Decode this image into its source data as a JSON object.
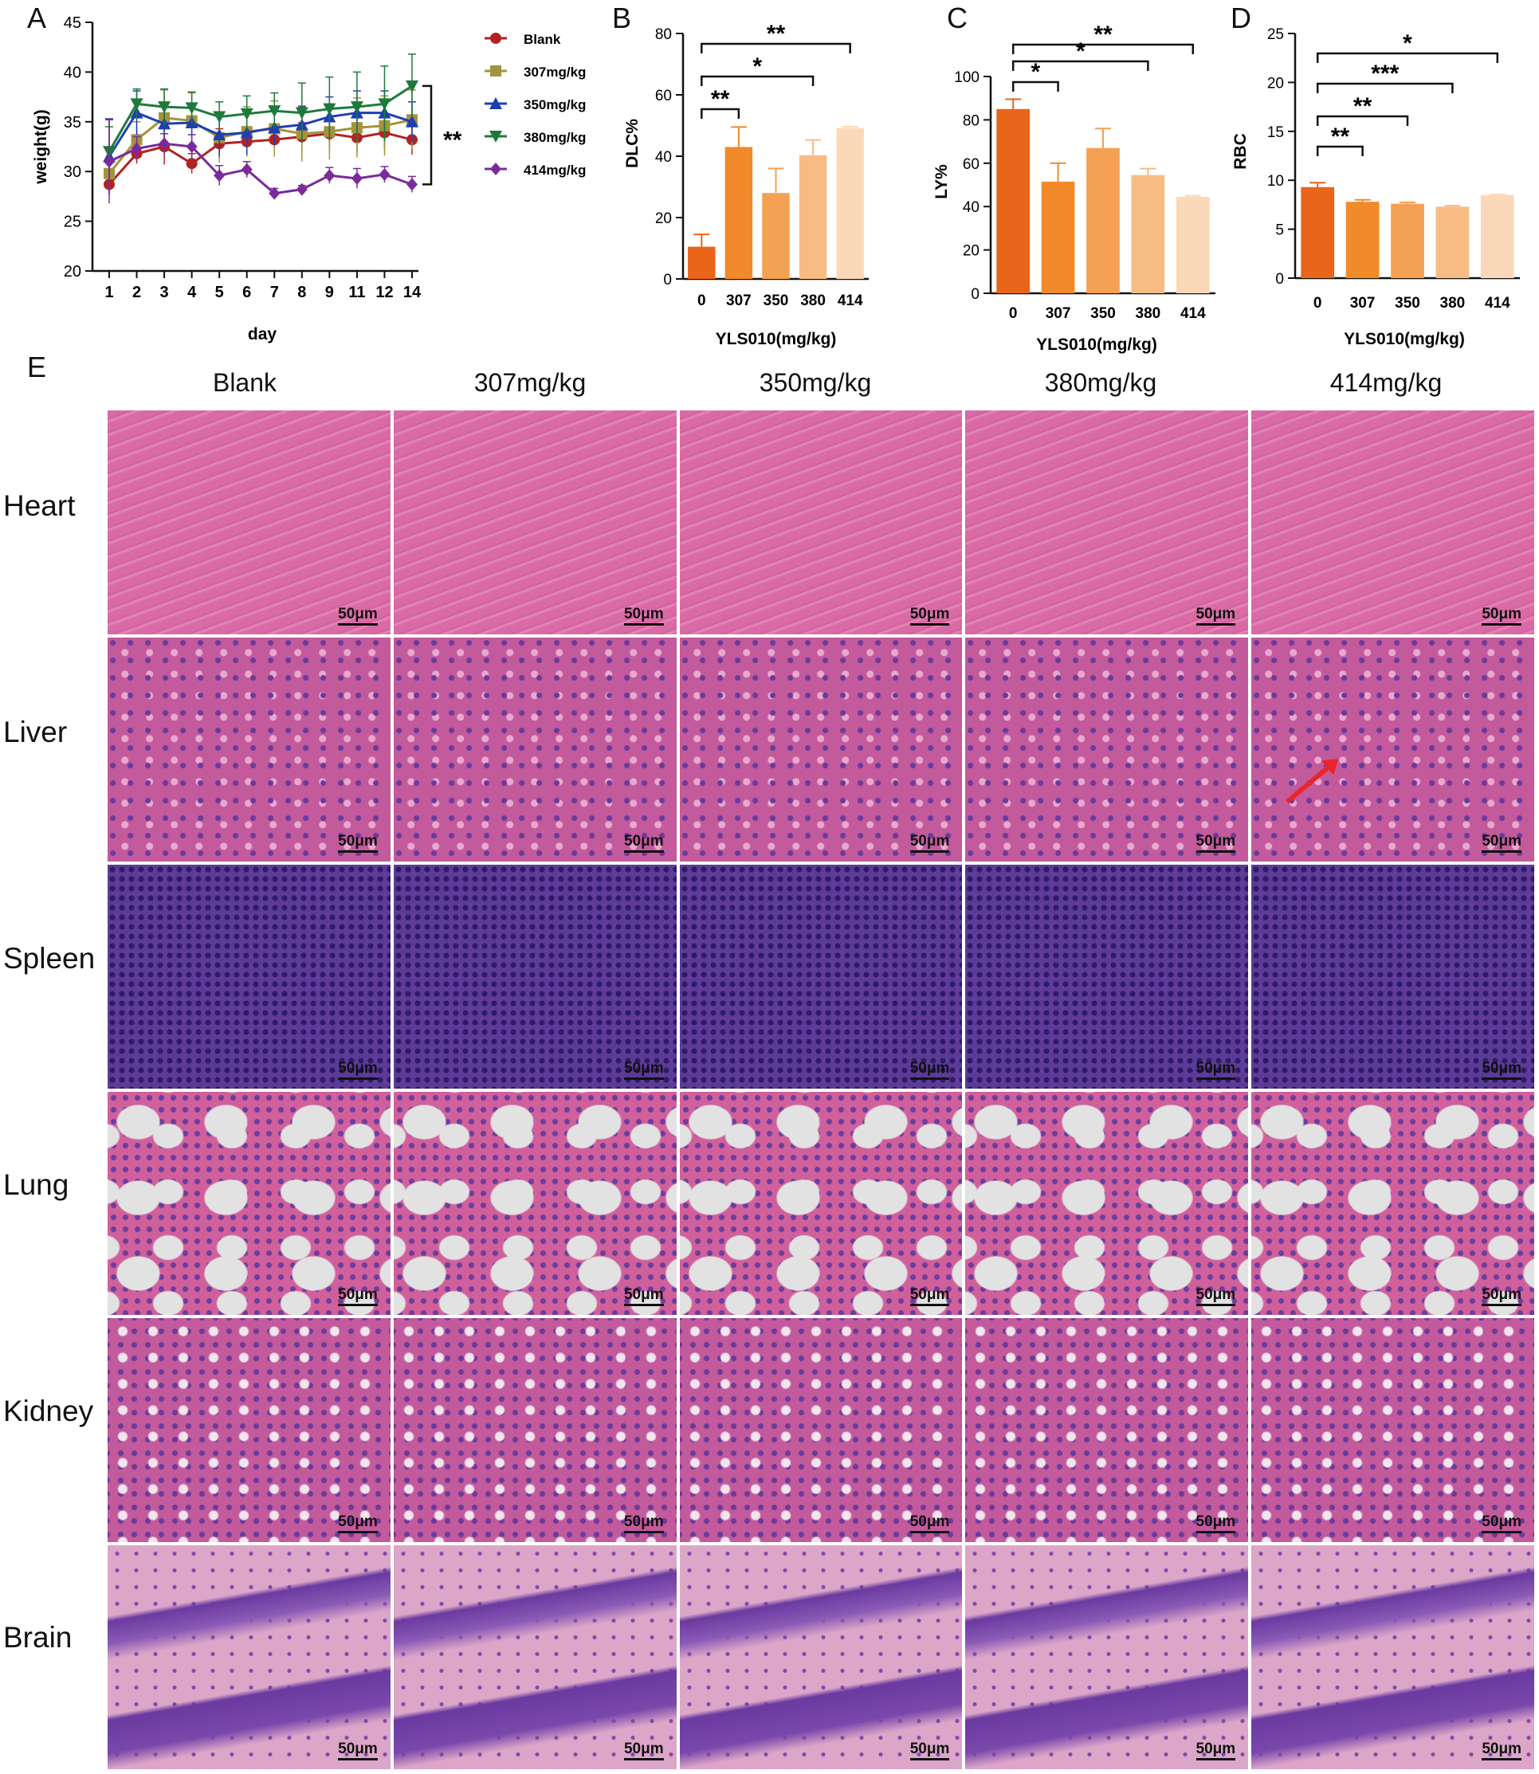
{
  "panel_labels": {
    "A": "A",
    "B": "B",
    "C": "C",
    "D": "D",
    "E": "E"
  },
  "colors": {
    "blank": "#b22222",
    "g307": "#a2943c",
    "g350": "#1f3fb0",
    "g380": "#1e7a3c",
    "g414": "#7a2a9a",
    "bar0": "#e8651a",
    "bar307": "#f08a2a",
    "bar350": "#f4a154",
    "bar380": "#f7bb84",
    "bar414": "#fbd9b8",
    "he_pink": "#d2609a",
    "he_nuclei": "#4a2a7c",
    "lung_air": "#d8d8d8",
    "arrow": "#e8262b"
  },
  "chart_data": [
    {
      "id": "A",
      "type": "line",
      "title": "",
      "xlabel": "day",
      "ylabel": "weight(g)",
      "categories": [
        "1",
        "2",
        "3",
        "4",
        "5",
        "6",
        "7",
        "8",
        "9",
        "11",
        "12",
        "14"
      ],
      "ylim": [
        20,
        45
      ],
      "yticks": [
        "20",
        "25",
        "30",
        "35",
        "40",
        "45"
      ],
      "series": [
        {
          "name": "Blank",
          "marker": "circle",
          "values": [
            28.7,
            31.8,
            32.5,
            30.8,
            32.8,
            33.0,
            33.2,
            33.5,
            33.8,
            33.4,
            33.9,
            33.2
          ],
          "errors": [
            1.0,
            1.0,
            1.8,
            1.0,
            1.5,
            1.5,
            1.3,
            1.4,
            1.5,
            1.5,
            1.6,
            1.5
          ]
        },
        {
          "name": "307mg/kg",
          "marker": "square",
          "values": [
            29.8,
            33.2,
            35.4,
            35.1,
            33.4,
            34.0,
            34.3,
            33.8,
            34.0,
            34.4,
            34.6,
            35.2
          ],
          "errors": [
            1.5,
            1.8,
            2.8,
            2.8,
            2.5,
            2.5,
            2.8,
            2.8,
            2.8,
            3.0,
            3.0,
            3.0
          ]
        },
        {
          "name": "350mg/kg",
          "marker": "triangle-up",
          "values": [
            31.5,
            35.9,
            34.8,
            34.9,
            33.7,
            33.9,
            34.4,
            34.7,
            35.5,
            35.9,
            35.9,
            35.0
          ],
          "errors": [
            3.8,
            2.2,
            1.8,
            1.8,
            2.2,
            2.2,
            1.8,
            1.8,
            2.0,
            2.2,
            2.2,
            2.0
          ]
        },
        {
          "name": "380mg/kg",
          "marker": "triangle-down",
          "values": [
            32.0,
            36.8,
            36.5,
            36.4,
            35.5,
            35.8,
            36.1,
            35.9,
            36.3,
            36.5,
            36.8,
            38.6
          ],
          "errors": [
            2.5,
            1.5,
            1.8,
            1.6,
            1.5,
            1.8,
            1.8,
            3.0,
            3.2,
            3.5,
            3.8,
            3.2
          ]
        },
        {
          "name": "414mg/kg",
          "marker": "diamond",
          "values": [
            31.0,
            32.3,
            32.8,
            32.5,
            29.6,
            30.2,
            27.8,
            28.2,
            29.6,
            29.3,
            29.7,
            28.7
          ],
          "errors": [
            4.2,
            1.2,
            1.0,
            1.2,
            1.0,
            0.8,
            0.5,
            0.4,
            0.8,
            1.0,
            0.8,
            0.8
          ]
        }
      ],
      "annotations": [
        "**"
      ],
      "legend_position": "right"
    },
    {
      "id": "B",
      "type": "bar",
      "title": "",
      "xlabel": "YLS010(mg/kg)",
      "ylabel": "DLC%",
      "categories": [
        "0",
        "307",
        "350",
        "380",
        "414"
      ],
      "values": [
        10.5,
        43.0,
        28.0,
        40.3,
        49.2
      ],
      "errors": [
        4.0,
        6.5,
        8.0,
        5.0,
        0.4
      ],
      "ylim": [
        0,
        80
      ],
      "yticks": [
        "0",
        "20",
        "40",
        "60",
        "80"
      ],
      "significance": [
        {
          "from": "0",
          "to": "307",
          "label": "**"
        },
        {
          "from": "0",
          "to": "380",
          "label": "*"
        },
        {
          "from": "0",
          "to": "414",
          "label": "**"
        }
      ]
    },
    {
      "id": "C",
      "type": "bar",
      "title": "",
      "xlabel": "YLS010(mg/kg)",
      "ylabel": "LY%",
      "categories": [
        "0",
        "307",
        "350",
        "380",
        "414"
      ],
      "values": [
        85.0,
        51.5,
        67.0,
        54.5,
        44.5
      ],
      "errors": [
        4.5,
        8.5,
        9.0,
        3.0,
        0.5
      ],
      "ylim": [
        0,
        100
      ],
      "yticks": [
        "0",
        "20",
        "40",
        "60",
        "80",
        "100"
      ],
      "significance": [
        {
          "from": "0",
          "to": "307",
          "label": "*"
        },
        {
          "from": "0",
          "to": "380",
          "label": "*"
        },
        {
          "from": "0",
          "to": "414",
          "label": "**"
        }
      ]
    },
    {
      "id": "D",
      "type": "bar",
      "title": "",
      "xlabel": "YLS010(mg/kg)",
      "ylabel": "RBC",
      "categories": [
        "0",
        "307",
        "350",
        "380",
        "414"
      ],
      "values": [
        9.3,
        7.8,
        7.6,
        7.3,
        8.5
      ],
      "errors": [
        0.45,
        0.2,
        0.15,
        0.1,
        0.05
      ],
      "ylim": [
        0,
        25
      ],
      "yticks": [
        "0",
        "5",
        "10",
        "15",
        "20",
        "25"
      ],
      "significance": [
        {
          "from": "0",
          "to": "307",
          "label": "**"
        },
        {
          "from": "0",
          "to": "350",
          "label": "**"
        },
        {
          "from": "0",
          "to": "380",
          "label": "***"
        },
        {
          "from": "0",
          "to": "414",
          "label": "*"
        }
      ]
    }
  ],
  "histology": {
    "columns": [
      "Blank",
      "307mg/kg",
      "350mg/kg",
      "380mg/kg",
      "414mg/kg"
    ],
    "rows": [
      "Heart",
      "Liver",
      "Spleen",
      "Lung",
      "Kidney",
      "Brain"
    ],
    "scale_bar": "50μm"
  }
}
